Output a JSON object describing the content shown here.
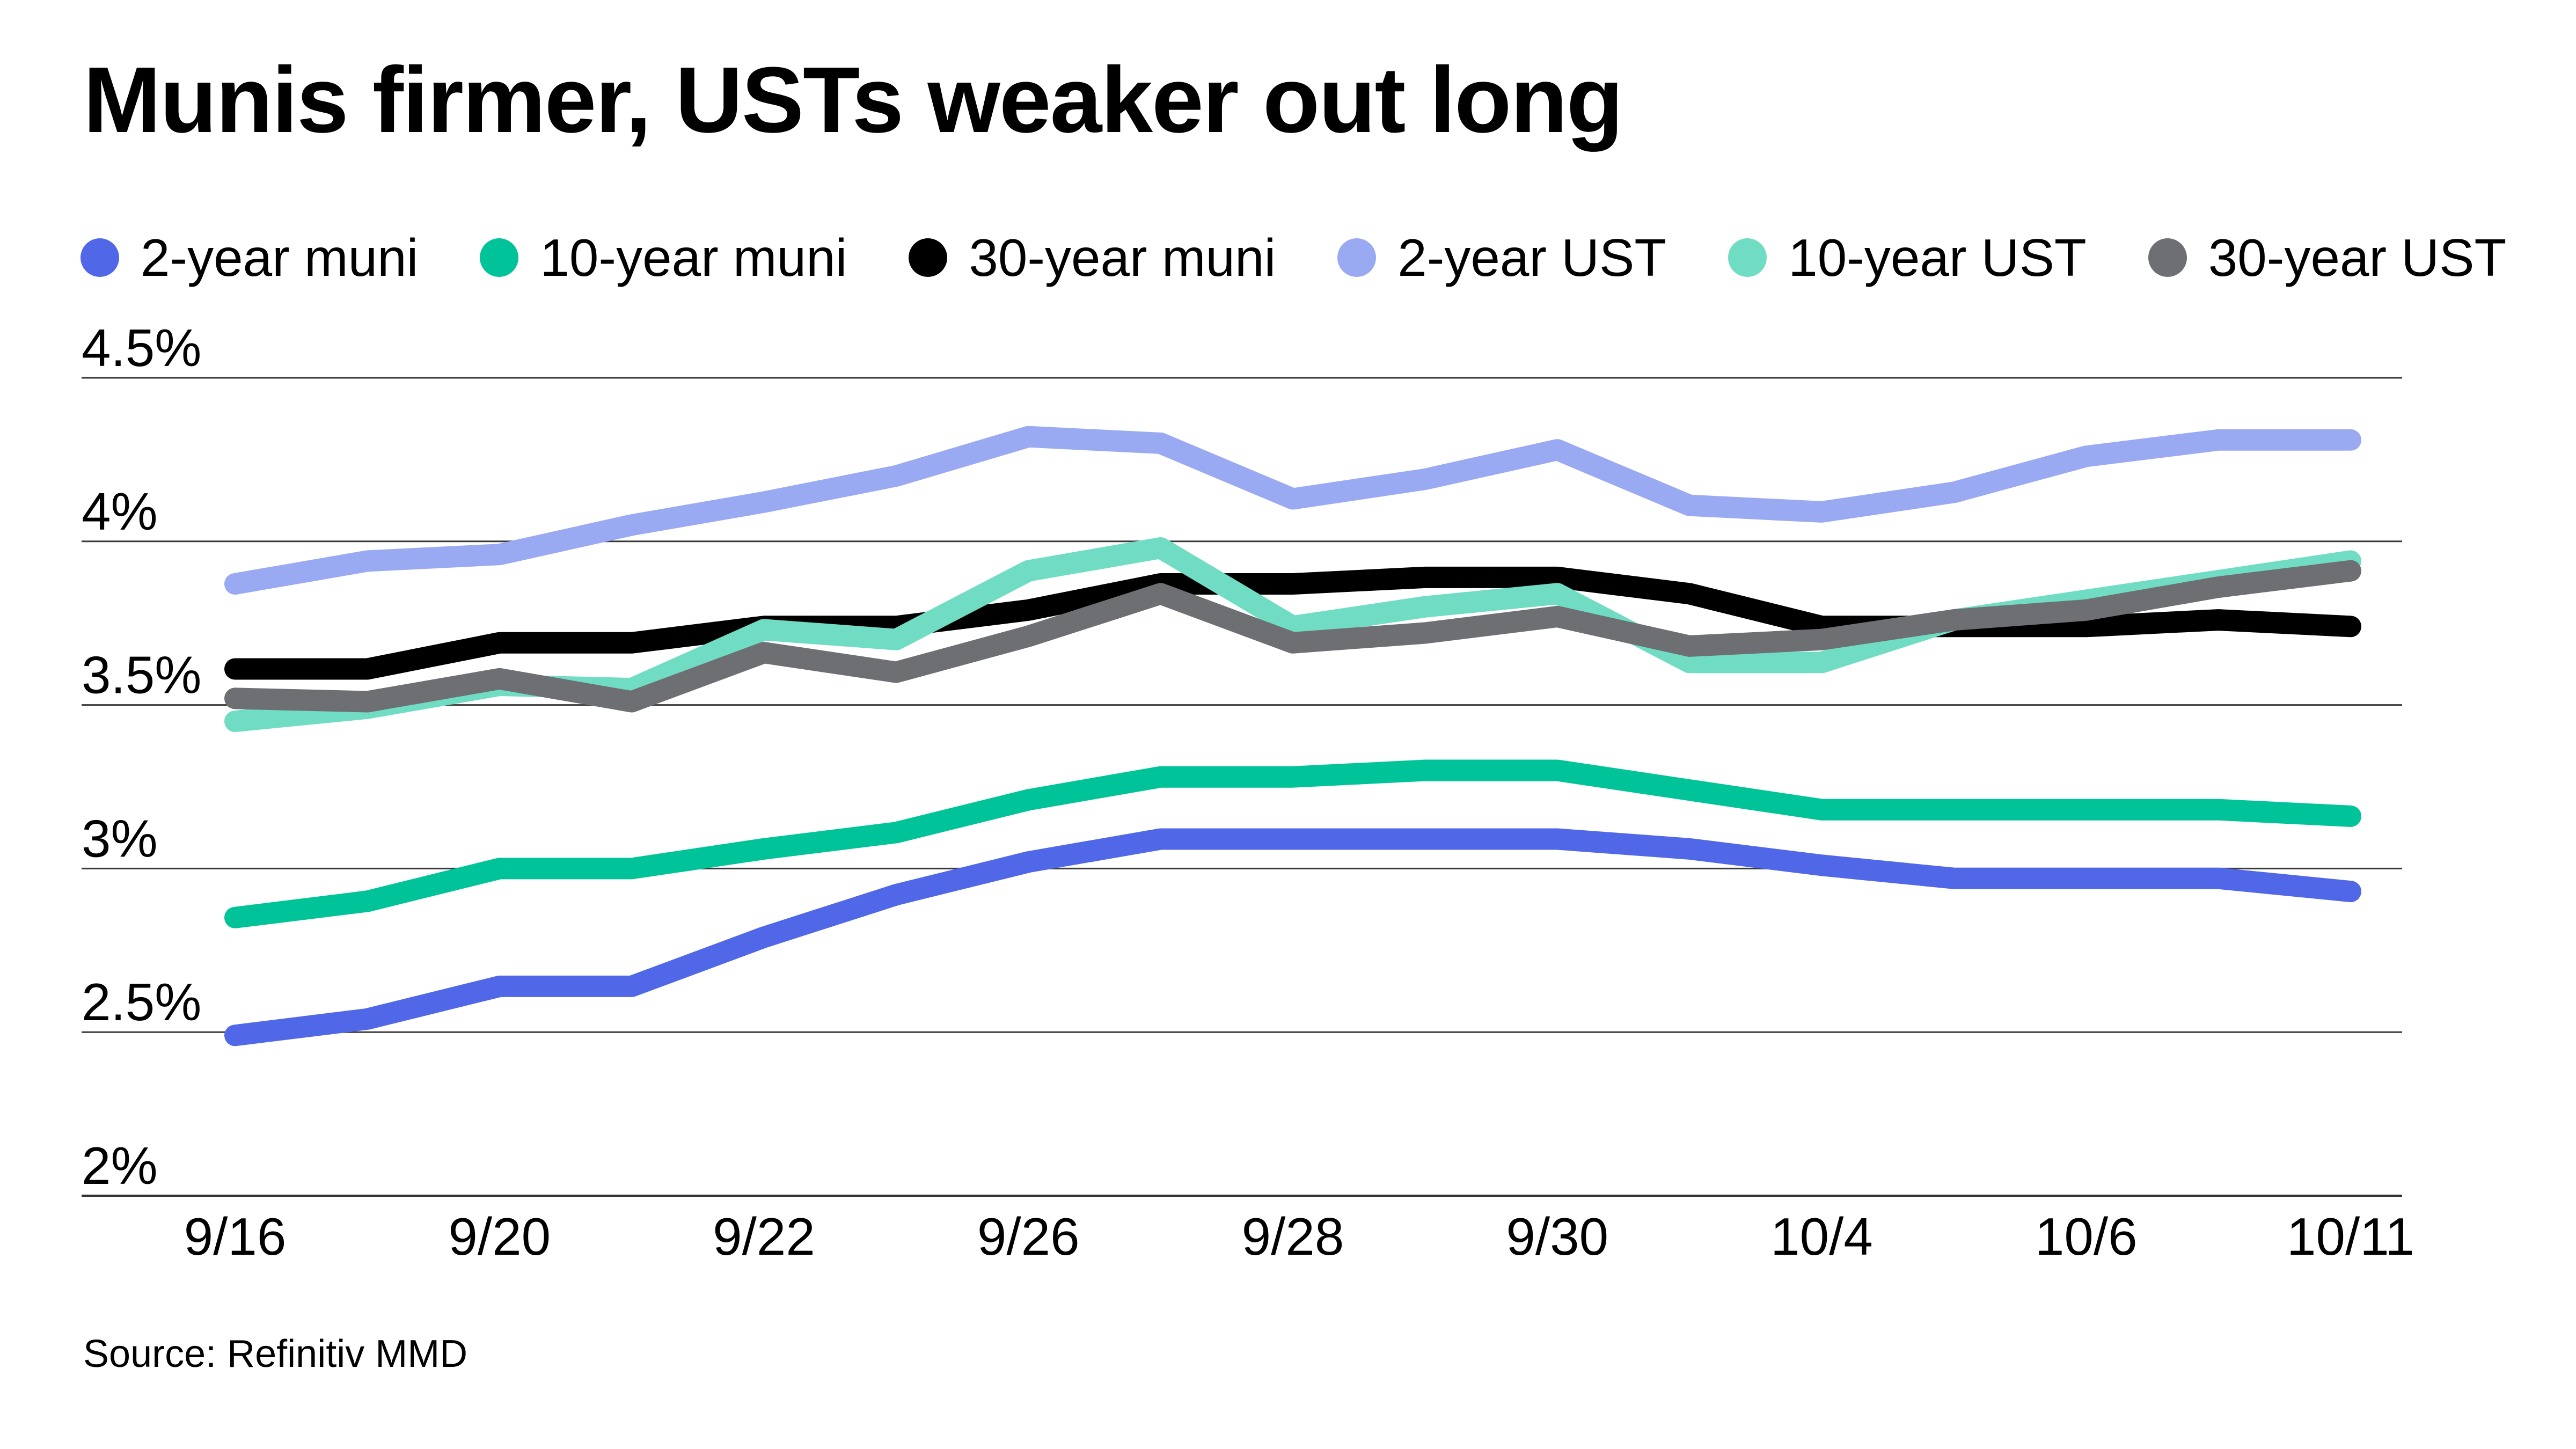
{
  "title": "Munis firmer, USTs weaker out long",
  "source": "Source: Refinitiv MMD",
  "chart_data": {
    "type": "line",
    "title": "Munis firmer, USTs weaker out long",
    "xlabel": "",
    "ylabel": "",
    "ylim": [
      2,
      4.5
    ],
    "y_ticks": [
      "2%",
      "2.5%",
      "3%",
      "3.5%",
      "4%",
      "4.5%"
    ],
    "x_tick_labels": [
      "9/16",
      "9/20",
      "9/22",
      "9/26",
      "9/28",
      "9/30",
      "10/4",
      "10/6",
      "10/11"
    ],
    "x_tick_positions": [
      0,
      2,
      4,
      6,
      8,
      10,
      12,
      14,
      16
    ],
    "x_index": [
      0,
      1,
      2,
      3,
      4,
      5,
      6,
      7,
      8,
      9,
      10,
      11,
      12,
      13,
      14,
      15,
      16
    ],
    "grid": "horizontal",
    "legend": "top",
    "series": [
      {
        "name": "2-year muni",
        "color": "#5068e8",
        "values": [
          2.49,
          2.54,
          2.64,
          2.64,
          2.79,
          2.92,
          3.02,
          3.09,
          3.09,
          3.09,
          3.09,
          3.06,
          3.01,
          2.97,
          2.97,
          2.97,
          2.93
        ]
      },
      {
        "name": "10-year muni",
        "color": "#00c39a",
        "values": [
          2.85,
          2.9,
          3.0,
          3.0,
          3.06,
          3.11,
          3.21,
          3.28,
          3.28,
          3.3,
          3.3,
          3.24,
          3.18,
          3.18,
          3.18,
          3.18,
          3.16
        ]
      },
      {
        "name": "30-year muni",
        "color": "#000000",
        "values": [
          3.61,
          3.61,
          3.69,
          3.69,
          3.74,
          3.74,
          3.79,
          3.87,
          3.87,
          3.89,
          3.89,
          3.84,
          3.74,
          3.74,
          3.74,
          3.76,
          3.74
        ]
      },
      {
        "name": "2-year UST",
        "color": "#9aaaf2",
        "values": [
          3.87,
          3.94,
          3.96,
          4.05,
          4.12,
          4.2,
          4.32,
          4.3,
          4.13,
          4.19,
          4.28,
          4.11,
          4.09,
          4.15,
          4.26,
          4.31,
          4.31
        ]
      },
      {
        "name": "10-year UST",
        "color": "#6fdcc3",
        "values": [
          3.45,
          3.49,
          3.56,
          3.55,
          3.73,
          3.7,
          3.91,
          3.98,
          3.74,
          3.8,
          3.84,
          3.63,
          3.63,
          3.76,
          3.82,
          3.88,
          3.94
        ]
      },
      {
        "name": "30-year UST",
        "color": "#6e6f73",
        "values": [
          3.52,
          3.51,
          3.58,
          3.51,
          3.66,
          3.6,
          3.71,
          3.84,
          3.69,
          3.72,
          3.77,
          3.68,
          3.7,
          3.76,
          3.79,
          3.86,
          3.91
        ]
      }
    ]
  }
}
